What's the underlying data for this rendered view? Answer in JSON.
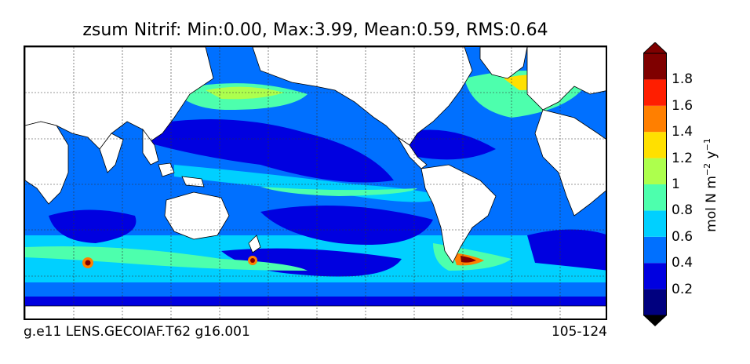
{
  "title": "zsum Nitrif: Min:0.00, Max:3.99, Mean:0.59, RMS:0.64",
  "footer": {
    "left": "g.e11 LENS.GECOIAF.T62 g16.001",
    "right": "105-124"
  },
  "colorbar": {
    "unit_label": "mol N m",
    "unit_exp1": "−2",
    "unit_mid": " y",
    "unit_exp2": "−1",
    "ticks": [
      "0.2",
      "0.4",
      "0.6",
      "0.8",
      "1",
      "1.2",
      "1.4",
      "1.6",
      "1.8"
    ],
    "levels": [
      {
        "color": "#00007f"
      },
      {
        "color": "#0000e0"
      },
      {
        "color": "#0070ff"
      },
      {
        "color": "#00d0ff"
      },
      {
        "color": "#4dffad"
      },
      {
        "color": "#adff4d"
      },
      {
        "color": "#ffe000"
      },
      {
        "color": "#ff7f00"
      },
      {
        "color": "#ff1e00"
      },
      {
        "color": "#7f0000"
      }
    ],
    "extend": "both"
  },
  "map": {
    "projection": "equirectangular",
    "gridlines": true,
    "land_color": "#ffffff",
    "colors": {
      "deep_blue": "#0a0adc",
      "mid_blue": "#0070ff",
      "cyan": "#00d0ff",
      "aqua": "#4dffad",
      "yellow_green": "#adff4d",
      "yellow": "#ffe000",
      "orange": "#ff7f00",
      "red": "#ff1e00",
      "dark_red": "#7f0000"
    }
  }
}
